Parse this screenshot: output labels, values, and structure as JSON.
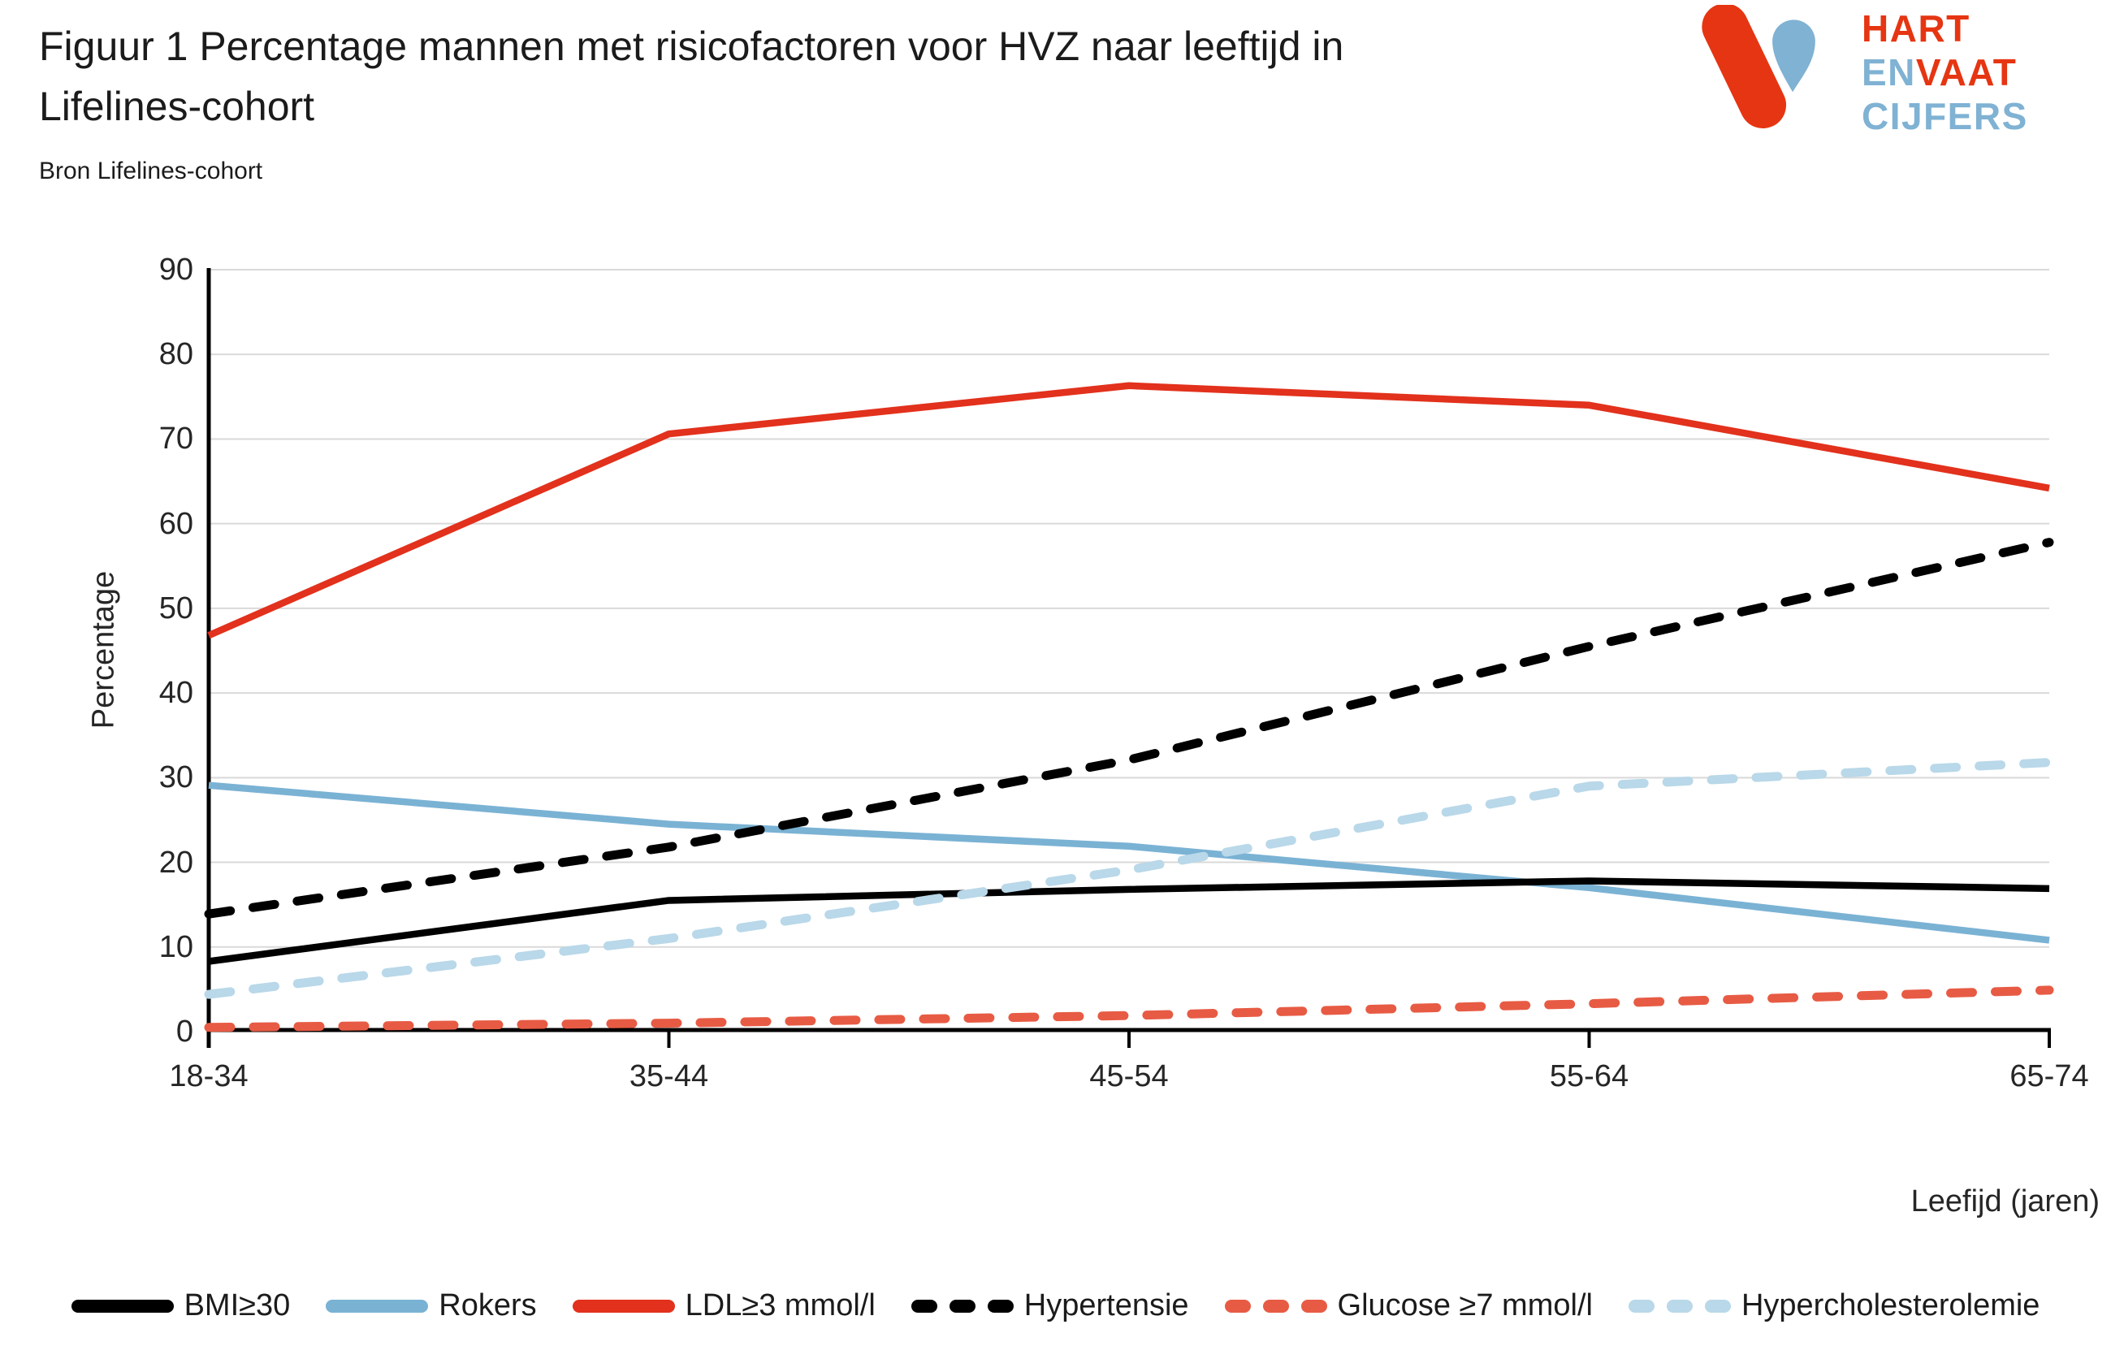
{
  "header": {
    "title_line1": "Figuur 1 Percentage mannen met risicofactoren voor HVZ naar leeftijd in",
    "title_line2": "Lifelines-cohort",
    "source": "Bron Lifelines-cohort"
  },
  "logo": {
    "line1": "HART",
    "line2_part1": "EN",
    "line2_part2": "VAAT",
    "line3": "CIJFERS",
    "red": "#E63512",
    "blue": "#7FB2D3"
  },
  "chart_data": {
    "type": "line",
    "categories": [
      "18-34",
      "35-44",
      "45-54",
      "55-64",
      "65-74"
    ],
    "series": [
      {
        "name": "BMI≥30",
        "color": "#000000",
        "dash": false,
        "values": [
          8.3,
          15.5,
          16.8,
          17.8,
          16.9
        ]
      },
      {
        "name": "Rokers",
        "color": "#7AB2D4",
        "dash": false,
        "values": [
          29.1,
          24.5,
          21.9,
          17.0,
          10.8
        ]
      },
      {
        "name": "LDL≥3 mmol/l",
        "color": "#E2311C",
        "dash": false,
        "values": [
          46.8,
          70.6,
          76.3,
          74.0,
          64.2
        ]
      },
      {
        "name": "Hypertensie",
        "color": "#000000",
        "dash": true,
        "values": [
          13.9,
          21.8,
          32.1,
          45.5,
          57.8
        ]
      },
      {
        "name": "Glucose ≥7 mmol/l",
        "color": "#E75B44",
        "dash": true,
        "values": [
          0.5,
          1.0,
          1.9,
          3.3,
          4.9
        ]
      },
      {
        "name": "Hypercholesterolemie",
        "color": "#B9D8E9",
        "dash": true,
        "values": [
          4.4,
          11.0,
          19.1,
          29.0,
          31.8
        ]
      }
    ],
    "xlabel": "Leefijd (jaren)",
    "ylabel": "Percentage",
    "ylim": [
      0,
      90
    ],
    "yticks": [
      0,
      10,
      20,
      30,
      40,
      50,
      60,
      70,
      80,
      90
    ],
    "grid": true,
    "grid_color": "#D9D9D9",
    "axis_color": "#000000",
    "tick_label_color": "#262626",
    "legend_position": "bottom"
  }
}
